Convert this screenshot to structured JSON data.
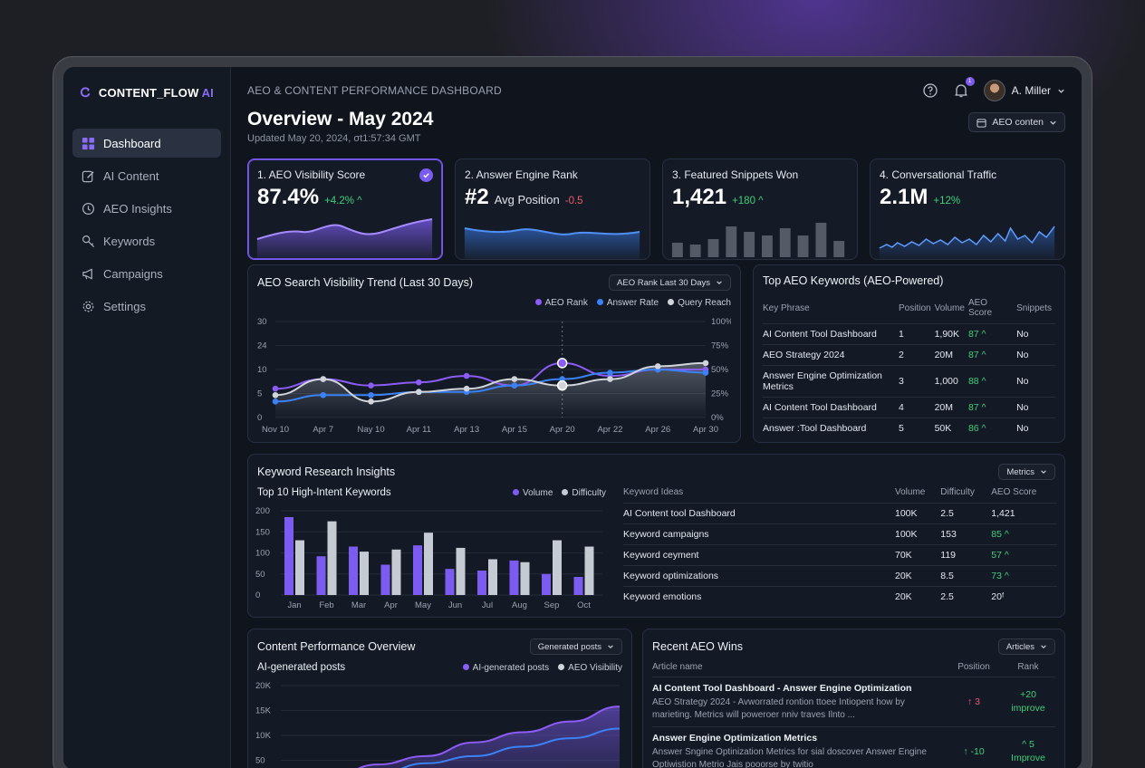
{
  "app": {
    "name": "CONTENT_FLOW",
    "name_suffix": "AI"
  },
  "sidebar": {
    "items": [
      {
        "label": "Dashboard",
        "icon": "dashboard-icon",
        "active": true
      },
      {
        "label": "AI Content",
        "icon": "edit-icon"
      },
      {
        "label": "AEO Insights",
        "icon": "insights-icon"
      },
      {
        "label": "Keywords",
        "icon": "key-icon"
      },
      {
        "label": "Campaigns",
        "icon": "megaphone-icon"
      },
      {
        "label": "Settings",
        "icon": "gear-icon"
      }
    ]
  },
  "header": {
    "breadcrumb": "AEO & CONTENT PERFORMANCE DASHBOARD",
    "title": "Overview - May 2024",
    "updated": "Updated May 20, 2024, σt1:57:34 GMT",
    "notification_count": "1",
    "user_name": "A. Miller",
    "filter_label": "AEO conten"
  },
  "kpis": [
    {
      "label": "1. AEO Visibility Score",
      "value": "87.4%",
      "delta": "+4.2% ^",
      "delta_dir": "up"
    },
    {
      "label": "2. Answer Engine Rank",
      "value": "#2",
      "sub": "Avg Position",
      "delta": "-0.5",
      "delta_dir": "down"
    },
    {
      "label": "3. Featured Snippets Won",
      "value": "1,421",
      "delta": "+180 ^",
      "delta_dir": "up"
    },
    {
      "label": "4. Conversational Traffic",
      "value": "2.1M",
      "delta": "+12%",
      "delta_dir": "up"
    }
  ],
  "trend": {
    "title": "AEO Search Visibility Trend (Last 30 Days)",
    "dropdown": "AEO Rank Last 30 Days",
    "colors": {
      "aeo_rank": "#8b5cf6",
      "answer_rate": "#3b82f6",
      "query_reach": "#d1d5db"
    },
    "chart_data": {
      "type": "line",
      "categories": [
        "Nov 10",
        "Apr 7",
        "Nay 10",
        "Apr 11",
        "Apr 13",
        "Apr 15",
        "Apr 20",
        "Apr 22",
        "Apr 26",
        "Apr 30"
      ],
      "y_ticks": [
        "30",
        "24",
        "10",
        "5",
        "0"
      ],
      "y2_ticks": [
        "100%",
        "75%",
        "50%",
        "25%",
        "0%"
      ],
      "ylim": [
        0,
        30
      ],
      "series": [
        {
          "name": "AEO Rank",
          "values": [
            9,
            12,
            10,
            11,
            13,
            10,
            17,
            13,
            15,
            15
          ]
        },
        {
          "name": "Answer Rate",
          "values": [
            5,
            7,
            7,
            8,
            8,
            10,
            12,
            14,
            15,
            14
          ]
        },
        {
          "name": "Query Reach",
          "values": [
            7,
            12,
            5,
            8,
            9,
            12,
            10,
            12,
            16,
            17
          ]
        }
      ]
    }
  },
  "top_keywords": {
    "title": "Top AEO Keywords (AEO-Powered)",
    "columns": [
      "Key Phrase",
      "Position",
      "Volume",
      "AEO Score",
      "Snippets"
    ],
    "rows": [
      [
        "AI Content Tool Dashboard",
        "1",
        "1,90K",
        "87 ^",
        "No"
      ],
      [
        "AEO Strategy 2024",
        "2",
        "20M",
        "87 ^",
        "No"
      ],
      [
        "Answer Engine Optimization Metrics",
        "3",
        "1,000",
        "88 ^",
        "No"
      ],
      [
        "AI Content Tool Dashboard",
        "4",
        "20M",
        "87 ^",
        "No"
      ],
      [
        "Answer :Tool Dashboard",
        "5",
        "50K",
        "86 ^",
        "No"
      ]
    ]
  },
  "keyword_research": {
    "title": "Keyword Research Insights",
    "dropdown": "Metrics",
    "chart_title": "Top 10 High-Intent Keywords",
    "colors": {
      "volume": "#7c5cf0",
      "difficulty": "#c5cad3"
    },
    "chart_data": {
      "type": "bar",
      "categories": [
        "Jan",
        "Feb",
        "Mar",
        "Apr",
        "May",
        "Jun",
        "Jul",
        "Aug",
        "Sep",
        "Oct"
      ],
      "y_ticks": [
        "200",
        "150",
        "100",
        "50",
        "0"
      ],
      "ylim": [
        0,
        200
      ],
      "series": [
        {
          "name": "Volume",
          "values": [
            185,
            92,
            115,
            72,
            118,
            62,
            58,
            82,
            50,
            43
          ]
        },
        {
          "name": "Difficulty",
          "values": [
            130,
            175,
            103,
            108,
            148,
            112,
            85,
            78,
            130,
            115
          ]
        }
      ]
    },
    "columns": [
      "Keyword Ideas",
      "Volume",
      "Difficulty",
      "AEO Score"
    ],
    "rows": [
      [
        "AI Content tool Dashboard",
        "100K",
        "2.5",
        "1,421"
      ],
      [
        "Keyword campaigns",
        "100K",
        "153",
        "85 ^"
      ],
      [
        "Keyword ceyment",
        "70K",
        "119",
        "57 ^"
      ],
      [
        "Keyword optimizations",
        "20K",
        "8.5",
        "73 ^"
      ],
      [
        "Keyword emotions",
        "20K",
        "2.5",
        "20ᶠ"
      ]
    ]
  },
  "content_performance": {
    "title": "Content Performance Overview",
    "dropdown": "Generated posts",
    "chart_title": "AI-generated posts",
    "colors": {
      "ai_posts": "#8b5cf6",
      "aeo_visibility": "#3b82f6"
    },
    "chart_data": {
      "type": "area",
      "y_ticks": [
        "20K",
        "15K",
        "10K",
        "50"
      ],
      "ylim": [
        0,
        20000
      ],
      "series": [
        {
          "name": "AI-generated posts",
          "values": [
            2000,
            4500,
            6800,
            8200,
            10500,
            12200,
            14000,
            16500
          ]
        },
        {
          "name": "AEO Visibility",
          "values": [
            1000,
            3000,
            5200,
            7000,
            8200,
            9800,
            11200,
            12800
          ]
        }
      ]
    }
  },
  "recent_wins": {
    "title": "Recent AEO Wins",
    "dropdown": "Articles",
    "columns": [
      "Article name",
      "Position",
      "Rank"
    ],
    "rows": [
      {
        "title": "AI Content Tool Dashboard - Answer Engine Optimization",
        "desc": "AEO Strategy 2024 - Avworrated rontion ttoee Intiopent how by marieting. Metrics will poweroer nniv traves Ilnto ...",
        "position": "↑ 3",
        "pos_dir": "down",
        "rank": "+20",
        "rank_label": "improve"
      },
      {
        "title": "Answer Engine Optimization Metrics",
        "desc": "Answer Sngine Optinization Metrics for sial doscover Answer Engine Optiwistion Metrio Jais pooorse by twitio",
        "position": "↑ -10",
        "pos_dir": "up",
        "rank": "^ 5",
        "rank_label": "Improve"
      }
    ]
  }
}
